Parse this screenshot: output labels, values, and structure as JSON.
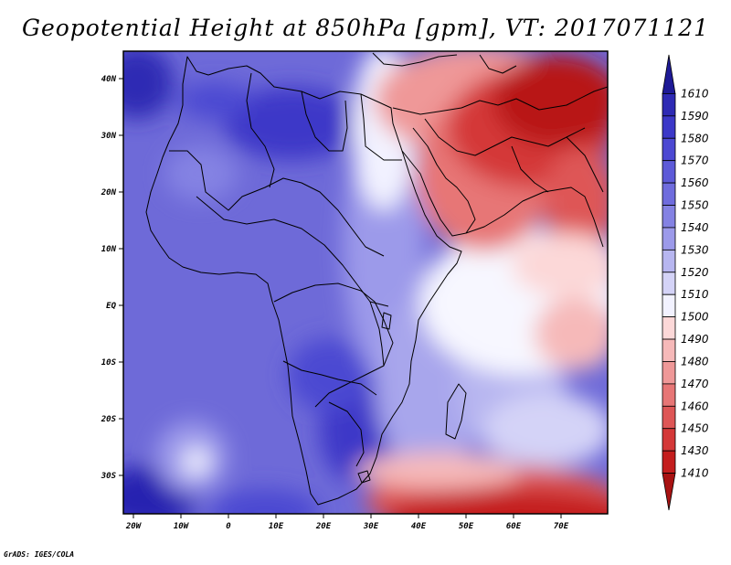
{
  "map": {
    "title": "Geopotential Height at 850hPa [gpm], VT: 2017071121",
    "credit": "GrADS: IGES/COLA",
    "lon_ticks": [
      "20W",
      "10W",
      "0",
      "10E",
      "20E",
      "30E",
      "40E",
      "50E",
      "60E",
      "70E"
    ],
    "lat_ticks": [
      "40N",
      "30N",
      "20N",
      "10N",
      "EQ",
      "10S",
      "20S",
      "30S"
    ],
    "colorbar": {
      "levels": [
        "1610",
        "1590",
        "1580",
        "1570",
        "1560",
        "1550",
        "1540",
        "1530",
        "1520",
        "1510",
        "1500",
        "1490",
        "1480",
        "1470",
        "1460",
        "1450",
        "1430",
        "1410"
      ],
      "colors": [
        "#1e1a96",
        "#2e2ab4",
        "#3c38c8",
        "#4c48d2",
        "#5d5ad8",
        "#6f6cdd",
        "#8482e3",
        "#9c9aea",
        "#b7b6f0",
        "#d4d3f7",
        "#f2f2ff",
        "#fcd8d8",
        "#f6b9b9",
        "#ef9898",
        "#e77676",
        "#de5656",
        "#d43838",
        "#c41e1e",
        "#a81212"
      ]
    },
    "colors": {
      "deep_blue": "#2824b0",
      "mid_blue": "#6e6ad8",
      "light_blue": "#a8a6ec",
      "white": "#f7f7ff",
      "light_red": "#f2a8a8",
      "deep_red": "#b81616"
    }
  }
}
